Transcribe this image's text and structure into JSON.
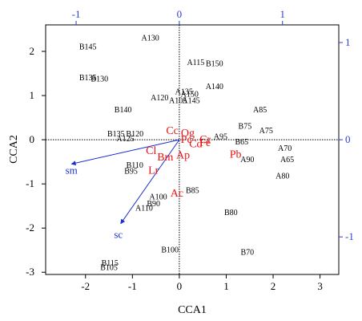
{
  "chart_data": {
    "type": "scatter",
    "title": "",
    "xlabel": "CCA1",
    "ylabel": "CCA2",
    "xlim": [
      -2.85,
      3.4
    ],
    "ylim": [
      -3.05,
      2.6
    ],
    "x_ticks": [
      -2,
      -1,
      0,
      1,
      2,
      3
    ],
    "y_ticks": [
      -3,
      -2,
      -1,
      0,
      1,
      2
    ],
    "top_axis": {
      "ticks": [
        -1,
        0,
        1
      ],
      "color": "#2b3fd6"
    },
    "right_axis": {
      "ticks": [
        -1,
        0,
        1
      ],
      "color": "#2b3fd6"
    },
    "reference_lines": {
      "x": 0,
      "y": 0,
      "style": "dotted"
    },
    "grid": false,
    "legend": "none",
    "site_color": "#000000",
    "species_color": "#ee1111",
    "vector_color": "#1a2fd0",
    "sites": [
      {
        "label": "B145",
        "x": -1.95,
        "y": 2.1
      },
      {
        "label": "A130",
        "x": -0.62,
        "y": 2.3
      },
      {
        "label": "A115",
        "x": 0.35,
        "y": 1.75
      },
      {
        "label": "B150",
        "x": 0.75,
        "y": 1.72
      },
      {
        "label": "B135",
        "x": -1.95,
        "y": 1.4
      },
      {
        "label": "B130",
        "x": -1.7,
        "y": 1.37
      },
      {
        "label": "A140",
        "x": 0.75,
        "y": 1.2
      },
      {
        "label": "A135",
        "x": 0.1,
        "y": 1.08
      },
      {
        "label": "A150",
        "x": 0.22,
        "y": 1.03
      },
      {
        "label": "A120",
        "x": -0.42,
        "y": 0.95
      },
      {
        "label": "A105",
        "x": -0.03,
        "y": 0.88
      },
      {
        "label": "A145",
        "x": 0.25,
        "y": 0.88
      },
      {
        "label": "B140",
        "x": -1.2,
        "y": 0.67
      },
      {
        "label": "A85",
        "x": 1.72,
        "y": 0.67
      },
      {
        "label": "B75",
        "x": 1.4,
        "y": 0.3
      },
      {
        "label": "A75",
        "x": 1.85,
        "y": 0.2
      },
      {
        "label": "B135",
        "x": -1.35,
        "y": 0.13
      },
      {
        "label": "B120",
        "x": -0.95,
        "y": 0.13
      },
      {
        "label": "A125",
        "x": -1.15,
        "y": 0.02
      },
      {
        "label": "A95",
        "x": 0.88,
        "y": 0.07
      },
      {
        "label": "B65",
        "x": 1.33,
        "y": -0.05
      },
      {
        "label": "A70",
        "x": 2.25,
        "y": -0.2
      },
      {
        "label": "A90",
        "x": 1.45,
        "y": -0.45
      },
      {
        "label": "A65",
        "x": 2.3,
        "y": -0.45
      },
      {
        "label": "A80",
        "x": 2.2,
        "y": -0.82
      },
      {
        "label": "B110",
        "x": -0.95,
        "y": -0.58
      },
      {
        "label": "B95",
        "x": -1.03,
        "y": -0.72
      },
      {
        "label": "A100",
        "x": -0.45,
        "y": -1.3
      },
      {
        "label": "B90",
        "x": -0.55,
        "y": -1.45
      },
      {
        "label": "A110",
        "x": -0.75,
        "y": -1.55
      },
      {
        "label": "B85",
        "x": 0.28,
        "y": -1.15
      },
      {
        "label": "B80",
        "x": 1.1,
        "y": -1.65
      },
      {
        "label": "B100",
        "x": -0.2,
        "y": -2.5
      },
      {
        "label": "B70",
        "x": 1.45,
        "y": -2.55
      },
      {
        "label": "B115",
        "x": -1.48,
        "y": -2.8
      },
      {
        "label": "B105",
        "x": -1.5,
        "y": -2.9
      }
    ],
    "species": [
      {
        "label": "Cc",
        "x": -0.15,
        "y": 0.22
      },
      {
        "label": "Og",
        "x": 0.18,
        "y": 0.17
      },
      {
        "label": "Pc",
        "x": 0.15,
        "y": 0.02
      },
      {
        "label": "Cr",
        "x": 0.55,
        "y": 0.02
      },
      {
        "label": "Cd",
        "x": 0.35,
        "y": -0.08
      },
      {
        "label": "Fe",
        "x": 0.55,
        "y": -0.05
      },
      {
        "label": "Cl",
        "x": -0.6,
        "y": -0.23
      },
      {
        "label": "Pb",
        "x": 1.2,
        "y": -0.32
      },
      {
        "label": "Bm",
        "x": -0.3,
        "y": -0.38
      },
      {
        "label": "Ap",
        "x": 0.08,
        "y": -0.33
      },
      {
        "label": "Lr",
        "x": -0.55,
        "y": -0.68
      },
      {
        "label": "Ac",
        "x": -0.05,
        "y": -1.2
      }
    ],
    "vectors": [
      {
        "label": "sm",
        "x": -2.3,
        "y": -0.55,
        "label_x": -2.3,
        "label_y": -0.7
      },
      {
        "label": "sc",
        "x": -1.25,
        "y": -1.9,
        "label_x": -1.3,
        "label_y": -2.15
      }
    ]
  }
}
